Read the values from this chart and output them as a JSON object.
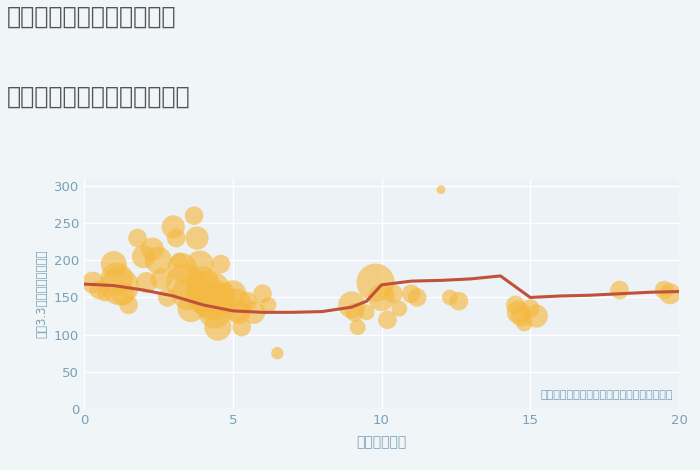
{
  "title_line1": "東京都見沼代親水公園駅の",
  "title_line2": "駅距離別中古マンション価格",
  "xlabel": "駅距離（分）",
  "ylabel": "坪（3.3㎡）単価（万円）",
  "annotation": "円の大きさは、取引のあった物件面積を示す",
  "fig_bg_color": "#f0f5f8",
  "plot_bg_color": "#edf2f7",
  "bubble_color": "#f5b942",
  "bubble_alpha": 0.65,
  "line_color": "#c0513a",
  "line_width": 2.2,
  "xlim": [
    0,
    20
  ],
  "ylim": [
    0,
    310
  ],
  "yticks": [
    0,
    50,
    100,
    150,
    200,
    250,
    300
  ],
  "xticks": [
    0,
    5,
    10,
    15,
    20
  ],
  "scatter_x": [
    0.3,
    0.5,
    0.7,
    1.0,
    1.1,
    1.2,
    1.3,
    1.5,
    1.8,
    2.0,
    2.1,
    2.3,
    2.5,
    2.6,
    2.8,
    3.0,
    3.1,
    3.2,
    3.3,
    3.4,
    3.5,
    3.6,
    3.7,
    3.8,
    3.9,
    4.0,
    4.1,
    4.2,
    4.3,
    4.4,
    4.5,
    4.6,
    4.7,
    4.8,
    5.0,
    5.1,
    5.2,
    5.3,
    5.5,
    5.7,
    6.0,
    6.2,
    6.5,
    9.0,
    9.1,
    9.2,
    9.5,
    9.8,
    10.0,
    10.2,
    10.4,
    10.6,
    11.0,
    11.2,
    12.0,
    12.3,
    12.6,
    14.5,
    14.6,
    14.7,
    14.8,
    15.0,
    15.2,
    18.0,
    19.5,
    19.7
  ],
  "scatter_y": [
    170,
    160,
    155,
    195,
    175,
    165,
    155,
    140,
    230,
    205,
    170,
    215,
    200,
    175,
    150,
    245,
    230,
    200,
    190,
    170,
    155,
    135,
    260,
    230,
    195,
    170,
    155,
    155,
    145,
    130,
    110,
    195,
    155,
    140,
    155,
    140,
    130,
    110,
    145,
    130,
    155,
    140,
    75,
    140,
    130,
    110,
    130,
    170,
    150,
    120,
    155,
    135,
    155,
    150,
    295,
    150,
    145,
    140,
    130,
    125,
    115,
    135,
    125,
    160,
    160,
    155
  ],
  "scatter_size": [
    250,
    180,
    120,
    350,
    550,
    750,
    280,
    180,
    180,
    280,
    230,
    280,
    380,
    230,
    180,
    280,
    180,
    130,
    450,
    750,
    550,
    380,
    180,
    280,
    380,
    550,
    750,
    1100,
    750,
    550,
    380,
    180,
    280,
    180,
    380,
    550,
    280,
    180,
    180,
    280,
    180,
    130,
    80,
    380,
    180,
    130,
    130,
    750,
    380,
    180,
    180,
    130,
    180,
    180,
    40,
    130,
    180,
    180,
    280,
    230,
    130,
    180,
    280,
    180,
    180,
    230
  ],
  "line_x": [
    0,
    0.5,
    1,
    2,
    3,
    4,
    5,
    6,
    7,
    8,
    9,
    9.5,
    10,
    11,
    12,
    13,
    14,
    15,
    16,
    17,
    18,
    19,
    20
  ],
  "line_y": [
    168,
    167,
    166,
    160,
    152,
    140,
    132,
    130,
    130,
    131,
    137,
    145,
    167,
    172,
    173,
    175,
    179,
    150,
    152,
    153,
    155,
    157,
    158
  ]
}
